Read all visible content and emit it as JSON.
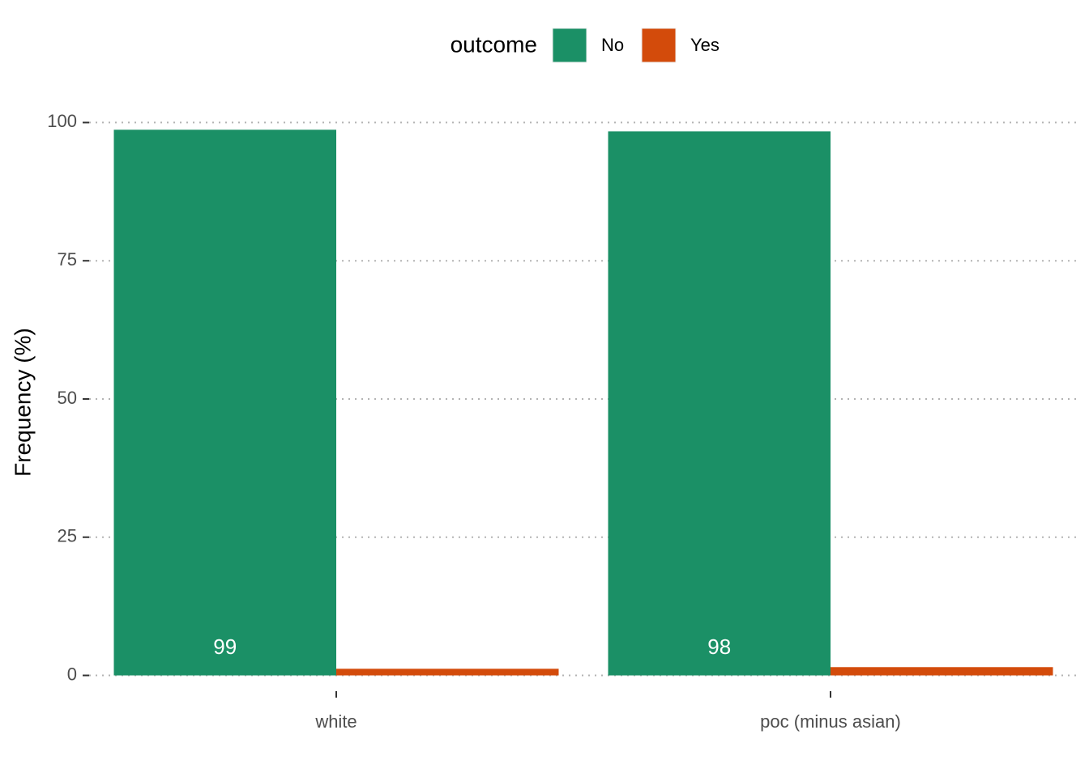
{
  "chart_data": {
    "type": "bar",
    "y_label": "Frequency (%)",
    "legend_title": "outcome",
    "legend_position": "top",
    "categories": [
      "white",
      "poc (minus asian)"
    ],
    "series": [
      {
        "name": "No",
        "color": "#1b9066",
        "values": [
          98.7,
          98.4
        ],
        "value_labels": [
          "99",
          "98"
        ]
      },
      {
        "name": "Yes",
        "color": "#d34b0b",
        "values": [
          1.2,
          1.5
        ],
        "value_labels": [
          null,
          null
        ]
      }
    ],
    "ylim": [
      -4.9,
      104.6
    ],
    "yticks": [
      0,
      25,
      50,
      75,
      100
    ],
    "grid": true
  }
}
